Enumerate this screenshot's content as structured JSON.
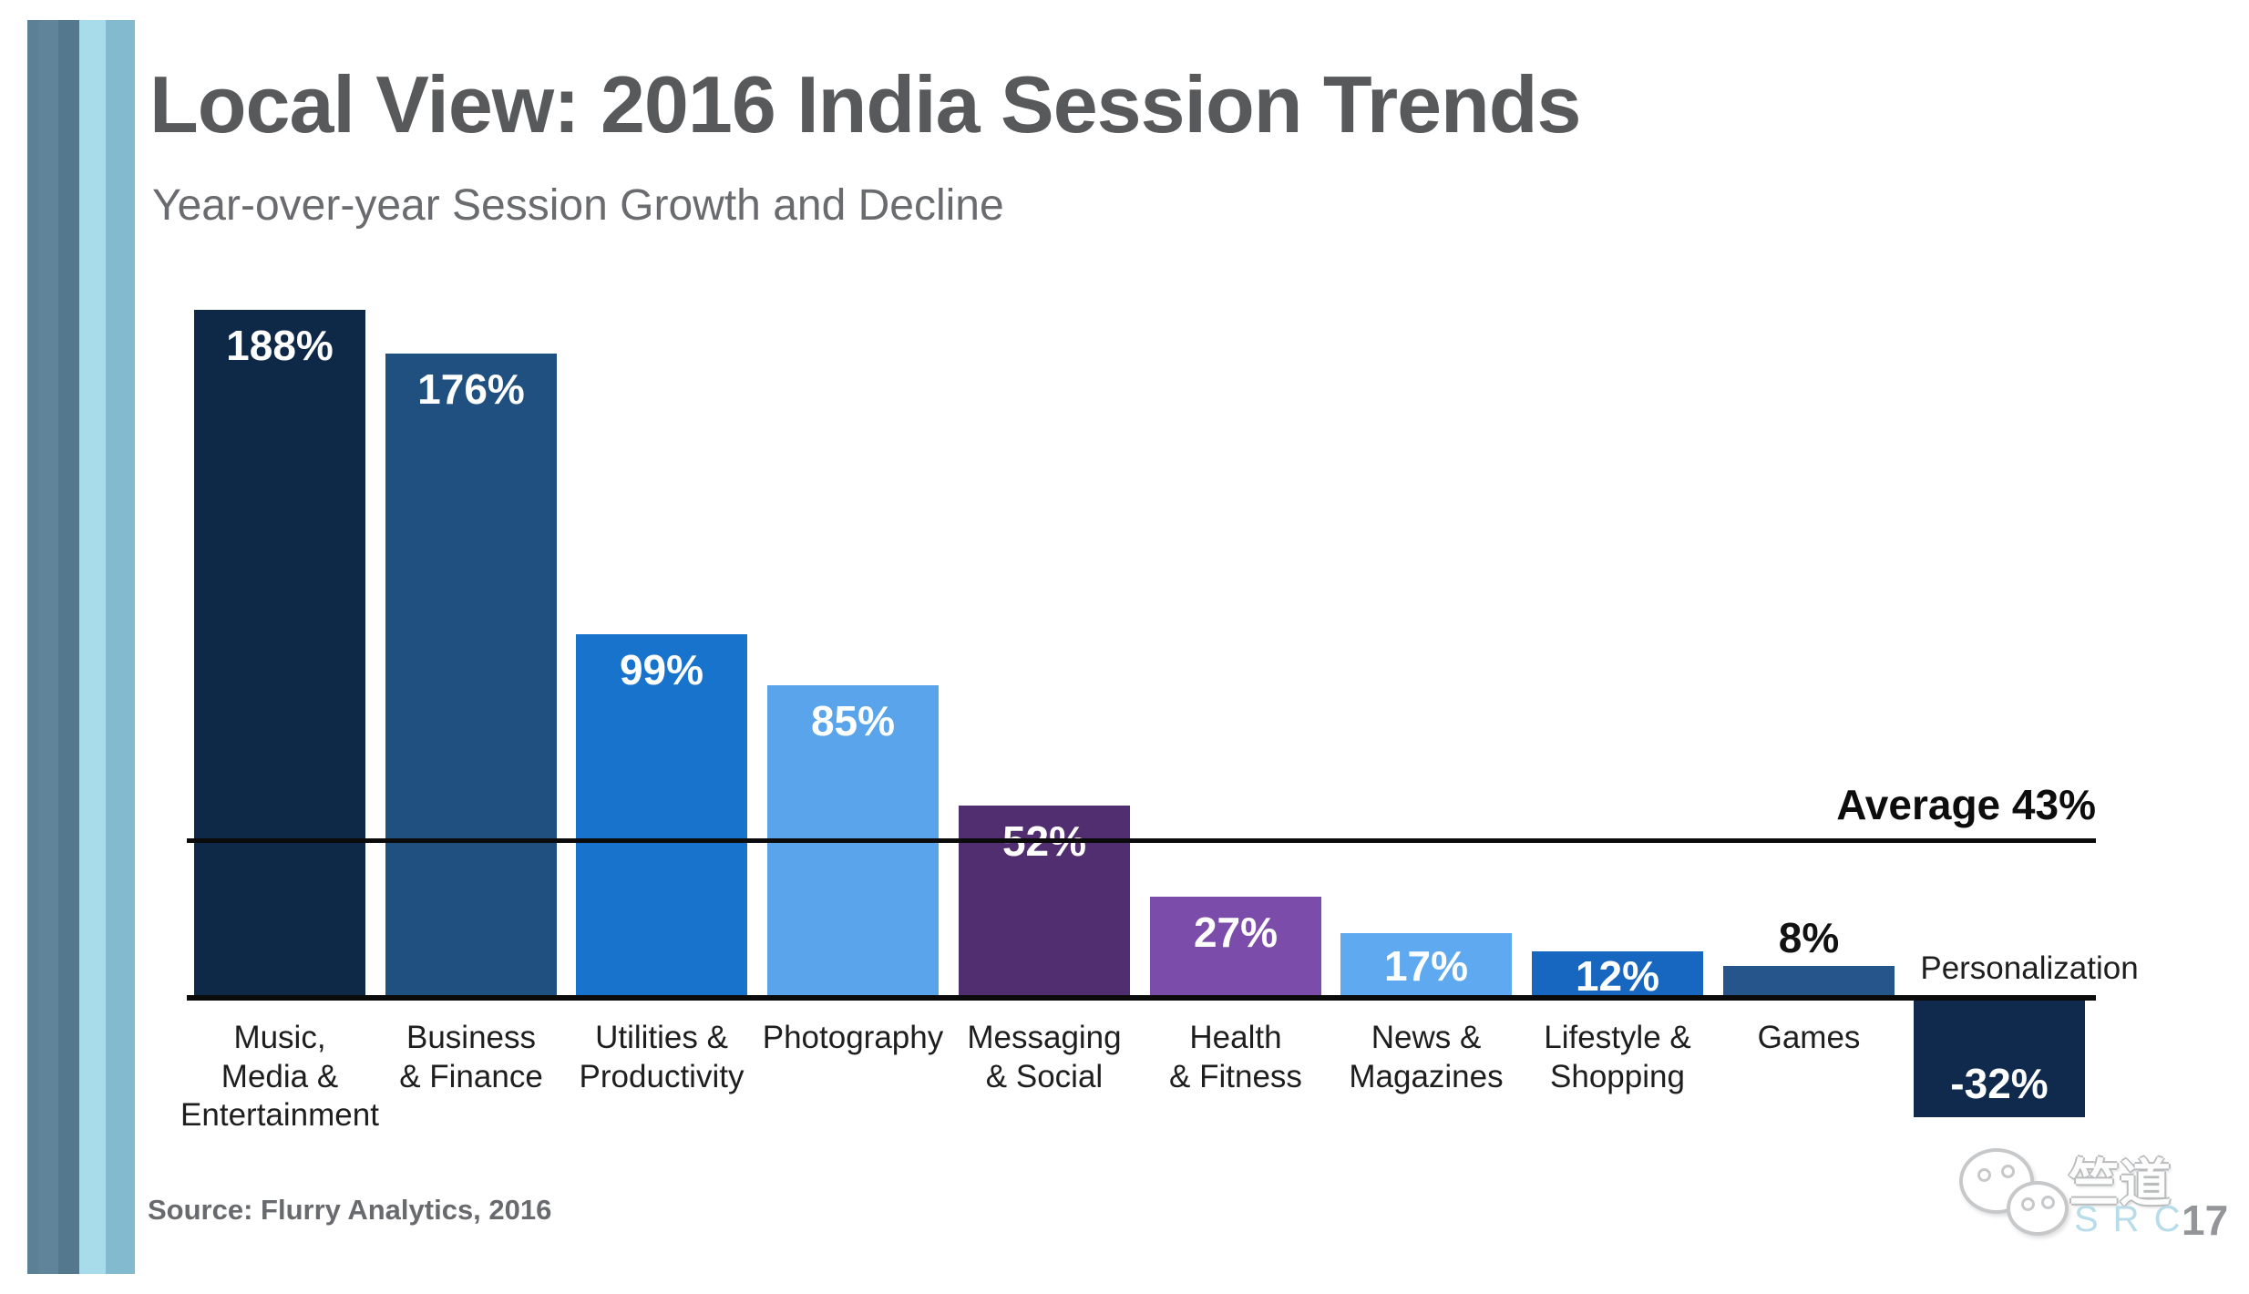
{
  "header": {
    "title": "Local View: 2016 India Session Trends",
    "subtitle": "Year-over-year Session Growth and Decline"
  },
  "chart_data": {
    "type": "bar",
    "title": "Local View: 2016 India Session Trends",
    "subtitle": "Year-over-year Session Growth and Decline",
    "y_unit": "%",
    "grid": false,
    "axes_visible": false,
    "categories": [
      "Music,\nMedia &\nEntertainment",
      "Business\n& Finance",
      "Utilities &\nProductivity",
      "Photography",
      "Messaging\n& Social",
      "Health\n& Fitness",
      "News &\nMagazines",
      "Lifestyle &\nShopping",
      "Games",
      "Personalization"
    ],
    "values": [
      188,
      176,
      99,
      85,
      52,
      27,
      17,
      12,
      8,
      -32
    ],
    "value_labels": [
      "188%",
      "176%",
      "99%",
      "85%",
      "52%",
      "27%",
      "17%",
      "12%",
      "8%",
      "-32%"
    ],
    "colors": [
      "#0e2948",
      "#1f5080",
      "#1873cc",
      "#5aa4ec",
      "#512e70",
      "#7c4cab",
      "#5ea9f0",
      "#1766c0",
      "#26558b",
      "#102a4d"
    ],
    "value_label_positions": [
      "inside-top",
      "inside-top",
      "inside-top",
      "inside-top",
      "inside-top",
      "inside-top",
      "inside-center",
      "inside-center",
      "above",
      "inside-bottom"
    ],
    "category_positions": [
      "below",
      "below",
      "below",
      "below",
      "below",
      "below",
      "below",
      "below",
      "below",
      "side"
    ],
    "average": {
      "value": 43,
      "label": "Average 43%"
    },
    "ylim": [
      -40,
      200
    ]
  },
  "footer": {
    "source": "Source: Flurry Analytics, 2016"
  },
  "decor": {
    "stripe_colors": [
      "#5c8095",
      "#60849a",
      "#54798e",
      "#a9dcea",
      "#83bacf"
    ],
    "stripe_widths": [
      13,
      21,
      23,
      29,
      32
    ]
  },
  "watermark": {
    "chinese": "竺道",
    "latin": "SRC",
    "number": "17",
    "latin_color": "#b9dcea",
    "number_color": "#939598"
  }
}
